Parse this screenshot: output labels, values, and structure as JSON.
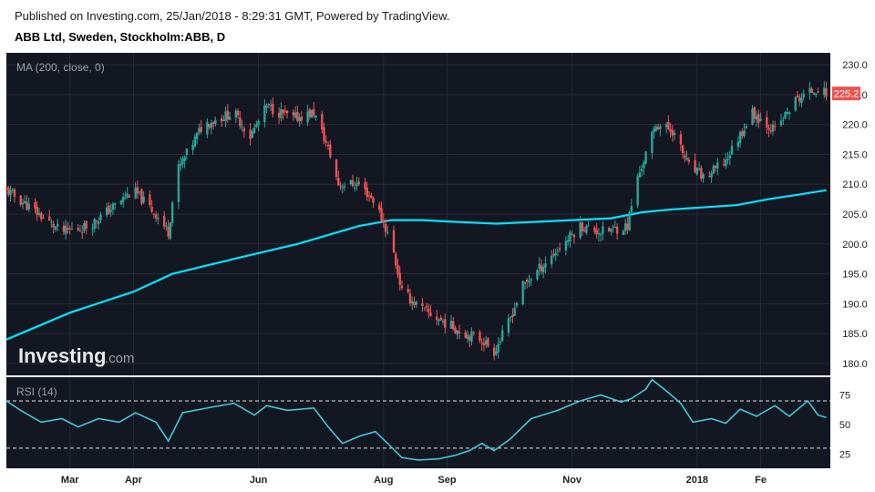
{
  "header": {
    "published": "Published on Investing.com, 25/Jan/2018 - 8:29:31 GMT, Powered by TradingView.",
    "instrument": "ABB Ltd, Sweden, Stockholm:ABB, D"
  },
  "watermark": {
    "brand": "Investing",
    "suffix": ".com"
  },
  "colors": {
    "background": "#131722",
    "up": "#26a69a",
    "down": "#ef5350",
    "ma": "#00e5ff",
    "rsi": "#43c7d6",
    "last_price_badge": "#ef5350"
  },
  "chart_data": [
    {
      "type": "candlestick",
      "indicator_label": "MA (200, close, 0)",
      "last_price_label": "225.2",
      "ylim": [
        178,
        232
      ],
      "y_ticks": [
        180.0,
        185.0,
        190.0,
        195.0,
        200.0,
        205.0,
        210.0,
        215.0,
        220.0,
        225.0,
        230.0
      ],
      "y_tick_labels": [
        "180.0",
        "185.0",
        "190.0",
        "195.0",
        "200.0",
        "205.0",
        "210.0",
        "215.0",
        "220.0",
        "225.0",
        "230.0"
      ],
      "x_ticks": [
        "2018-03-01",
        "2018-04-01",
        "2018-06-01",
        "2018-08-01",
        "2018-09-01",
        "2018-11-01",
        "2019-01-01",
        "2019-02-01"
      ],
      "x_tick_labels": [
        "Mar",
        "Apr",
        "Jun",
        "Aug",
        "Sep",
        "Nov",
        "2018",
        "Fe"
      ],
      "close_anchors": [
        [
          "2018-01-29",
          209
        ],
        [
          "2018-02-10",
          206
        ],
        [
          "2018-02-25",
          202
        ],
        [
          "2018-03-10",
          203
        ],
        [
          "2018-03-25",
          207
        ],
        [
          "2018-04-01",
          209
        ],
        [
          "2018-04-12",
          205
        ],
        [
          "2018-04-18",
          202
        ],
        [
          "2018-04-22",
          212
        ],
        [
          "2018-05-05",
          220
        ],
        [
          "2018-05-20",
          222
        ],
        [
          "2018-05-28",
          218
        ],
        [
          "2018-06-05",
          223
        ],
        [
          "2018-06-18",
          221
        ],
        [
          "2018-06-28",
          222
        ],
        [
          "2018-07-05",
          216
        ],
        [
          "2018-07-10",
          210
        ],
        [
          "2018-07-20",
          210
        ],
        [
          "2018-07-28",
          207
        ],
        [
          "2018-08-05",
          200
        ],
        [
          "2018-08-10",
          192
        ],
        [
          "2018-08-20",
          189
        ],
        [
          "2018-08-30",
          187
        ],
        [
          "2018-09-10",
          185
        ],
        [
          "2018-09-18",
          184
        ],
        [
          "2018-09-24",
          182
        ],
        [
          "2018-09-30",
          186
        ],
        [
          "2018-10-08",
          193
        ],
        [
          "2018-10-22",
          198
        ],
        [
          "2018-11-05",
          203
        ],
        [
          "2018-11-15",
          202
        ],
        [
          "2018-11-28",
          203
        ],
        [
          "2018-12-02",
          210
        ],
        [
          "2018-12-08",
          216
        ],
        [
          "2018-12-12",
          220
        ],
        [
          "2018-12-20",
          219
        ],
        [
          "2018-12-28",
          213
        ],
        [
          "2019-01-05",
          211
        ],
        [
          "2019-01-15",
          214
        ],
        [
          "2019-01-28",
          222
        ],
        [
          "2019-02-08",
          219
        ],
        [
          "2019-02-18",
          224
        ],
        [
          "2019-02-28",
          226
        ],
        [
          "2019-03-05",
          225.2
        ]
      ],
      "ma_series": {
        "name": "MA (200, close, 0)",
        "points": [
          [
            "2018-01-29",
            184
          ],
          [
            "2018-03-01",
            188.5
          ],
          [
            "2018-04-01",
            192
          ],
          [
            "2018-04-20",
            195
          ],
          [
            "2018-05-20",
            197.5
          ],
          [
            "2018-06-20",
            200
          ],
          [
            "2018-07-20",
            203
          ],
          [
            "2018-08-05",
            204
          ],
          [
            "2018-08-20",
            204
          ],
          [
            "2018-09-05",
            203.7
          ],
          [
            "2018-09-25",
            203.4
          ],
          [
            "2018-10-20",
            203.8
          ],
          [
            "2018-11-20",
            204.3
          ],
          [
            "2018-12-05",
            205.3
          ],
          [
            "2018-12-20",
            205.8
          ],
          [
            "2019-01-20",
            206.5
          ],
          [
            "2019-02-05",
            207.5
          ],
          [
            "2019-02-20",
            208.3
          ],
          [
            "2019-03-05",
            209
          ]
        ]
      }
    },
    {
      "type": "line",
      "indicator_label": "RSI (14)",
      "ylim": [
        13,
        90
      ],
      "y_ticks": [
        25,
        50,
        75
      ],
      "y_tick_labels": [
        "25",
        "50",
        "75"
      ],
      "bands": [
        30,
        70
      ],
      "series": [
        {
          "points": [
            [
              "2018-01-29",
              70
            ],
            [
              "2018-02-05",
              62
            ],
            [
              "2018-02-15",
              52
            ],
            [
              "2018-02-25",
              55
            ],
            [
              "2018-03-05",
              48
            ],
            [
              "2018-03-15",
              55
            ],
            [
              "2018-03-25",
              52
            ],
            [
              "2018-04-02",
              60
            ],
            [
              "2018-04-12",
              52
            ],
            [
              "2018-04-18",
              36
            ],
            [
              "2018-04-25",
              60
            ],
            [
              "2018-05-10",
              65
            ],
            [
              "2018-05-20",
              68
            ],
            [
              "2018-05-30",
              58
            ],
            [
              "2018-06-05",
              66
            ],
            [
              "2018-06-15",
              62
            ],
            [
              "2018-06-28",
              64
            ],
            [
              "2018-07-05",
              48
            ],
            [
              "2018-07-12",
              34
            ],
            [
              "2018-07-20",
              40
            ],
            [
              "2018-07-28",
              44
            ],
            [
              "2018-08-03",
              34
            ],
            [
              "2018-08-10",
              22
            ],
            [
              "2018-08-18",
              20
            ],
            [
              "2018-08-28",
              21
            ],
            [
              "2018-09-05",
              24
            ],
            [
              "2018-09-12",
              28
            ],
            [
              "2018-09-18",
              34
            ],
            [
              "2018-09-24",
              28
            ],
            [
              "2018-10-02",
              38
            ],
            [
              "2018-10-12",
              55
            ],
            [
              "2018-10-25",
              62
            ],
            [
              "2018-11-05",
              70
            ],
            [
              "2018-11-15",
              75
            ],
            [
              "2018-11-25",
              69
            ],
            [
              "2018-11-30",
              72
            ],
            [
              "2018-12-07",
              80
            ],
            [
              "2018-12-10",
              88
            ],
            [
              "2018-12-18",
              77
            ],
            [
              "2018-12-24",
              68
            ],
            [
              "2018-12-30",
              52
            ],
            [
              "2019-01-08",
              55
            ],
            [
              "2019-01-15",
              51
            ],
            [
              "2019-01-22",
              63
            ],
            [
              "2019-01-30",
              57
            ],
            [
              "2019-02-08",
              66
            ],
            [
              "2019-02-15",
              57
            ],
            [
              "2019-02-24",
              70
            ],
            [
              "2019-03-01",
              58
            ],
            [
              "2019-03-05",
              56
            ]
          ]
        }
      ]
    }
  ]
}
